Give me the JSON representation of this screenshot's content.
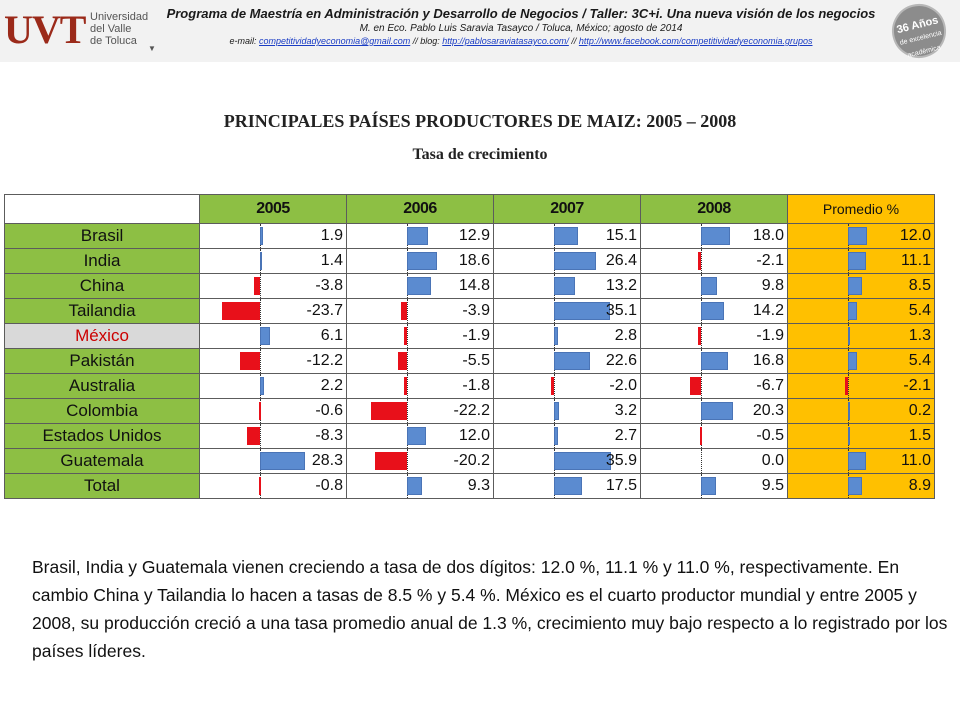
{
  "header": {
    "logo_mark": "UVT",
    "logo_lines": [
      "Universidad",
      "del Valle",
      "de Toluca"
    ],
    "line1": "Programa de Maestría en Administración y Desarrollo de Negocios / Taller: 3C+i. Una nueva visión de los negocios",
    "line2": "M. en Eco. Pablo Luis Saravia Tasayco / Toluca, México; agosto de 2014",
    "email_prefix": "e-mail: ",
    "email": "competitividadyeconomia@gmail.com",
    "blog_prefix": " // blog: ",
    "blog": "http://pablosaraviatasayco.com/",
    "fb_prefix": " // ",
    "facebook": "http://www.facebook.com/competitividadyeconomia.grupos",
    "badge_main": "36 Años",
    "badge_sub": "de excelencia académica"
  },
  "title": "PRINCIPALES PAÍSES PRODUCTORES DE MAIZ: 2005 – 2008",
  "subtitle": "Tasa de crecimiento",
  "table": {
    "columns": [
      "2005",
      "2006",
      "2007",
      "2008",
      "Promedio %"
    ],
    "rows": [
      {
        "country": "Brasil",
        "values": [
          1.9,
          12.9,
          15.1,
          18.0,
          12.0
        ],
        "labels": [
          "1.9",
          "12.9",
          "15.1",
          "18.0",
          "12.0"
        ]
      },
      {
        "country": "India",
        "values": [
          1.4,
          18.6,
          26.4,
          -2.1,
          11.1
        ],
        "labels": [
          "1.4",
          "18.6",
          "26.4",
          "-2.1",
          "11.1"
        ]
      },
      {
        "country": "China",
        "values": [
          -3.8,
          14.8,
          13.2,
          9.8,
          8.5
        ],
        "labels": [
          "-3.8",
          "14.8",
          "13.2",
          "9.8",
          "8.5"
        ]
      },
      {
        "country": "Tailandia",
        "values": [
          -23.7,
          -3.9,
          35.1,
          14.2,
          5.4
        ],
        "labels": [
          "-23.7",
          "-3.9",
          "35.1",
          "14.2",
          "5.4"
        ]
      },
      {
        "country": "México",
        "values": [
          6.1,
          -1.9,
          2.8,
          -1.9,
          1.3
        ],
        "labels": [
          "6.1",
          "-1.9",
          "2.8",
          "-1.9",
          "1.3"
        ]
      },
      {
        "country": "Pakistán",
        "values": [
          -12.2,
          -5.5,
          22.6,
          16.8,
          5.4
        ],
        "labels": [
          "-12.2",
          "-5.5",
          "22.6",
          "16.8",
          "5.4"
        ]
      },
      {
        "country": "Australia",
        "values": [
          2.2,
          -1.8,
          -2.0,
          -6.7,
          -2.1
        ],
        "labels": [
          "2.2",
          "-1.8",
          "-2.0",
          "-6.7",
          "-2.1"
        ]
      },
      {
        "country": "Colombia",
        "values": [
          -0.6,
          -22.2,
          3.2,
          20.3,
          0.2
        ],
        "labels": [
          "-0.6",
          "-22.2",
          "3.2",
          "20.3",
          "0.2"
        ]
      },
      {
        "country": "Estados Unidos",
        "values": [
          -8.3,
          12.0,
          2.7,
          -0.5,
          1.5
        ],
        "labels": [
          "-8.3",
          "12.0",
          "2.7",
          "-0.5",
          "1.5"
        ]
      },
      {
        "country": "Guatemala",
        "values": [
          28.3,
          -20.2,
          35.9,
          0.0,
          11.0
        ],
        "labels": [
          "28.3",
          "-20.2",
          "35.9",
          "0.0",
          "11.0"
        ]
      },
      {
        "country": "Total",
        "values": [
          -0.8,
          9.3,
          17.5,
          9.5,
          8.9
        ],
        "labels": [
          "-0.8",
          "9.3",
          "17.5",
          "9.5",
          "8.9"
        ]
      }
    ]
  },
  "paragraph": "Brasil, India y Guatemala vienen creciendo a tasa de dos dígitos: 12.0 %, 11.1 % y 11.0 %, respectivamente. En cambio China y Tailandia lo hacen a tasas de 8.5 % y 5.4 %. México es el cuarto productor mundial y entre 2005 y 2008, su producción creció a una tasa promedio anual de 1.3 %, crecimiento muy bajo respecto a lo registrado por los países líderes.",
  "colors": {
    "positive_bar": "#5b8bd0",
    "negative_bar": "#e8101a",
    "country_bg": "#8dbf44",
    "average_bg": "#ffc000",
    "mexico_text": "#cc0000"
  }
}
